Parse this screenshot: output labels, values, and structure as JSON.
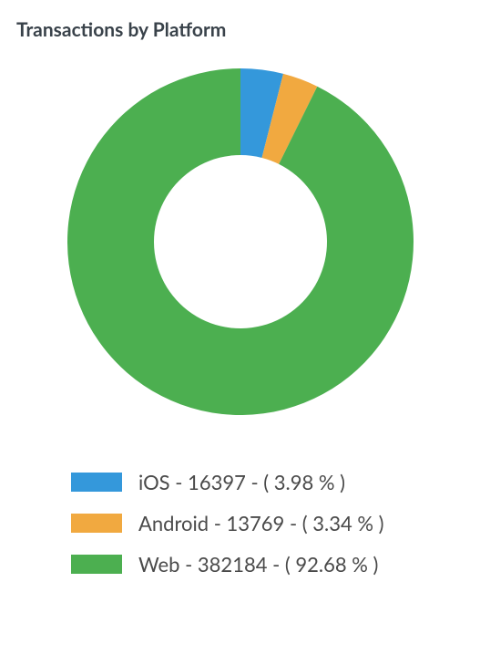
{
  "chart": {
    "title": "Transactions by Platform",
    "type": "donut",
    "background_color": "#ffffff",
    "title_color": "#39424a",
    "title_fontsize": 21,
    "title_fontweight": 700,
    "outer_radius": 190,
    "inner_radius": 95,
    "start_angle_deg": -90,
    "series": [
      {
        "name": "iOS",
        "value": 16397,
        "percent": 3.98,
        "color": "#3498db"
      },
      {
        "name": "Android",
        "value": 13769,
        "percent": 3.34,
        "color": "#f1a940"
      },
      {
        "name": "Web",
        "value": 382184,
        "percent": 92.68,
        "color": "#4caf50"
      }
    ],
    "legend": {
      "label_fontsize": 22,
      "label_color": "#4a4a4a",
      "swatch_width": 56,
      "swatch_height": 21
    }
  }
}
